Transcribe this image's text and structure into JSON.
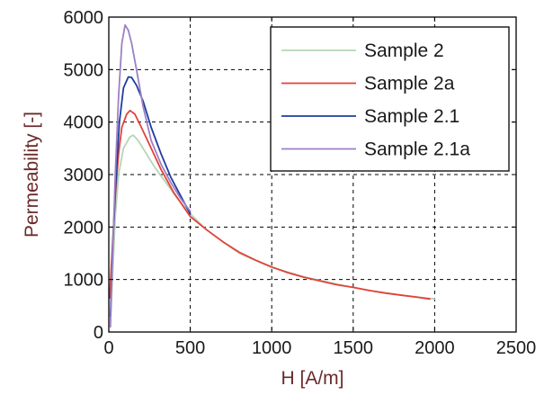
{
  "chart_data": {
    "type": "line",
    "title": "",
    "xlabel": "H [A/m]",
    "ylabel": "Permeability [-]",
    "xlim": [
      0,
      2500
    ],
    "ylim": [
      0,
      6000
    ],
    "xticks": [
      0,
      500,
      1000,
      1500,
      2000,
      2500
    ],
    "yticks": [
      0,
      1000,
      2000,
      3000,
      4000,
      5000,
      6000
    ],
    "grid": true,
    "grid_style": "dashed",
    "legend_position": "top-right",
    "series": [
      {
        "name": "Sample 2",
        "color": "#b5d6b5",
        "points": [
          [
            10,
            200
          ],
          [
            25,
            1200
          ],
          [
            40,
            2200
          ],
          [
            60,
            3000
          ],
          [
            90,
            3500
          ],
          [
            130,
            3720
          ],
          [
            150,
            3750
          ],
          [
            180,
            3650
          ],
          [
            220,
            3450
          ],
          [
            280,
            3150
          ],
          [
            350,
            2850
          ],
          [
            420,
            2550
          ],
          [
            500,
            2250
          ],
          [
            600,
            1950
          ],
          [
            800,
            1500
          ],
          [
            1000,
            1230
          ],
          [
            1200,
            1050
          ],
          [
            1400,
            910
          ],
          [
            1600,
            790
          ],
          [
            1800,
            700
          ],
          [
            2000,
            630
          ]
        ]
      },
      {
        "name": "Sample 2a",
        "color": "#e2423a",
        "points": [
          [
            5,
            650
          ],
          [
            20,
            1500
          ],
          [
            40,
            2600
          ],
          [
            60,
            3400
          ],
          [
            80,
            3900
          ],
          [
            110,
            4150
          ],
          [
            130,
            4220
          ],
          [
            160,
            4150
          ],
          [
            200,
            3900
          ],
          [
            260,
            3500
          ],
          [
            320,
            3100
          ],
          [
            400,
            2650
          ],
          [
            500,
            2200
          ],
          [
            600,
            1950
          ],
          [
            700,
            1720
          ],
          [
            800,
            1520
          ],
          [
            900,
            1370
          ],
          [
            1000,
            1240
          ],
          [
            1100,
            1130
          ],
          [
            1200,
            1040
          ],
          [
            1300,
            970
          ],
          [
            1400,
            900
          ],
          [
            1500,
            850
          ],
          [
            1600,
            790
          ],
          [
            1700,
            740
          ],
          [
            1800,
            700
          ],
          [
            1900,
            660
          ],
          [
            1970,
            630
          ]
        ]
      },
      {
        "name": "Sample 2.1",
        "color": "#1f3d9c",
        "points": [
          [
            10,
            300
          ],
          [
            25,
            1700
          ],
          [
            45,
            3000
          ],
          [
            65,
            4000
          ],
          [
            90,
            4650
          ],
          [
            120,
            4860
          ],
          [
            140,
            4850
          ],
          [
            170,
            4700
          ],
          [
            210,
            4400
          ],
          [
            260,
            3900
          ],
          [
            320,
            3400
          ],
          [
            380,
            2950
          ],
          [
            440,
            2600
          ],
          [
            500,
            2250
          ]
        ]
      },
      {
        "name": "Sample 2.1a",
        "color": "#9d80c4",
        "points": [
          [
            10,
            100
          ],
          [
            25,
            1600
          ],
          [
            40,
            3000
          ],
          [
            60,
            4500
          ],
          [
            80,
            5500
          ],
          [
            100,
            5850
          ],
          [
            120,
            5750
          ],
          [
            140,
            5500
          ],
          [
            170,
            5000
          ],
          [
            210,
            4300
          ],
          [
            260,
            3650
          ],
          [
            320,
            3200
          ],
          [
            380,
            2850
          ],
          [
            440,
            2550
          ],
          [
            500,
            2300
          ]
        ]
      }
    ]
  }
}
